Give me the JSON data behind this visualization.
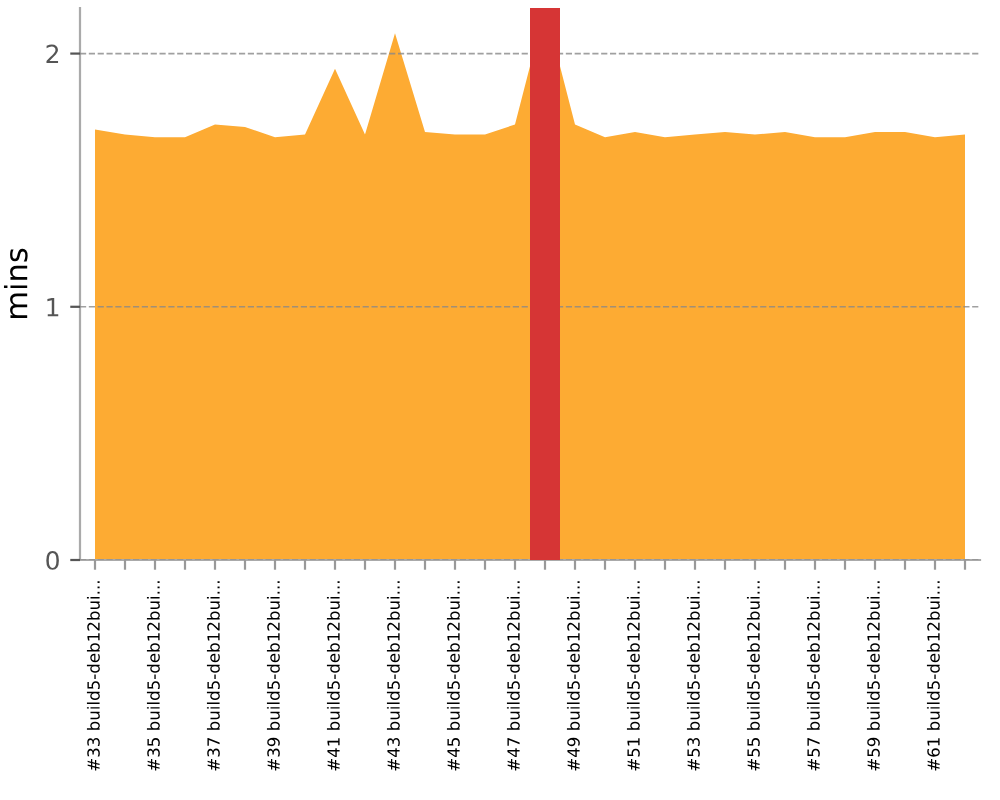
{
  "chart_data": {
    "type": "area",
    "ylabel": "mins",
    "categories": [
      "#33 build5-deb12bui...",
      null,
      "#35 build5-deb12bui...",
      null,
      "#37 build5-deb12bui...",
      null,
      "#39 build5-deb12bui...",
      null,
      "#41 build5-deb12bui...",
      null,
      "#43 build5-deb12bui...",
      null,
      "#45 build5-deb12bui...",
      null,
      "#47 build5-deb12bui...",
      null,
      "#49 build5-deb12bui...",
      null,
      "#51 build5-deb12bui...",
      null,
      "#53 build5-deb12bui...",
      null,
      "#55 build5-deb12bui...",
      null,
      "#57 build5-deb12bui...",
      null,
      "#59 build5-deb12bui...",
      null,
      "#61 build5-deb12bui...",
      null
    ],
    "series": [
      {
        "color": "#fdab33",
        "values": [
          1.7,
          1.68,
          1.67,
          1.67,
          1.72,
          1.71,
          1.67,
          1.68,
          1.94,
          1.68,
          2.08,
          1.69,
          1.68,
          1.68,
          1.72,
          2.18,
          1.72,
          1.67,
          1.69,
          1.67,
          1.68,
          1.69,
          1.68,
          1.69,
          1.67,
          1.67,
          1.69,
          1.69,
          1.67,
          1.68
        ]
      },
      {
        "type": "bar",
        "color": "#d63535",
        "values": [
          null,
          null,
          null,
          null,
          null,
          null,
          null,
          null,
          null,
          null,
          null,
          null,
          null,
          null,
          null,
          2.18,
          null,
          null,
          null,
          null,
          null,
          null,
          null,
          null,
          null,
          null,
          null,
          null,
          null,
          null
        ]
      }
    ],
    "ylim": [
      0,
      2.18
    ],
    "yticks": [
      0,
      1,
      2
    ],
    "grid": "y",
    "line_style": "dashed"
  }
}
